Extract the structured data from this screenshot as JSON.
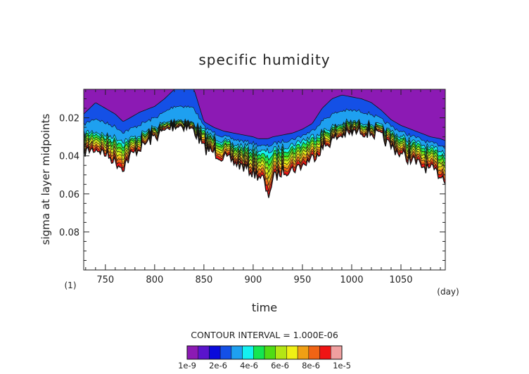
{
  "chart_data": {
    "type": "heatmap",
    "title": "specific humidity",
    "xlabel": "time",
    "ylabel": "sigma at layer midpoints",
    "x_unit": "(day)",
    "y_unit": "(1)",
    "xlim": [
      728,
      1095
    ],
    "ylim": [
      0.1,
      0.005
    ],
    "y_axis_inverted": true,
    "x_ticks": [
      750,
      800,
      850,
      900,
      950,
      1000,
      1050
    ],
    "x_tick_labels": [
      "750",
      "800",
      "850",
      "900",
      "950",
      "1000",
      "1050"
    ],
    "y_ticks": [
      0.02,
      0.04,
      0.06,
      0.08
    ],
    "y_tick_labels": [
      "0.02",
      "0.04",
      "0.06",
      "0.08"
    ],
    "contour_interval_text": "CONTOUR INTERVAL = 1.000E-06",
    "colorbar": {
      "labels": [
        "1e-9",
        "2e-6",
        "4e-6",
        "6e-6",
        "8e-6",
        "1e-5"
      ],
      "colors": [
        "#8c1ab4",
        "#5a14cc",
        "#0a0adc",
        "#1450e6",
        "#1ea0f0",
        "#14f0f0",
        "#14e650",
        "#50dc14",
        "#b4e614",
        "#f0f014",
        "#f0a014",
        "#f06414",
        "#f01414",
        "#f0a0a0"
      ]
    },
    "level_boundaries": {
      "x": [
        728,
        740,
        750,
        760,
        768,
        775,
        785,
        800,
        810,
        820,
        830,
        840,
        850,
        860,
        870,
        880,
        890,
        900,
        905,
        910,
        915,
        920,
        930,
        940,
        950,
        960,
        970,
        980,
        990,
        1000,
        1010,
        1020,
        1030,
        1040,
        1050,
        1060,
        1070,
        1080,
        1090,
        1095
      ],
      "lowest_cloud_sigma": [
        0.038,
        0.036,
        0.039,
        0.043,
        0.046,
        0.04,
        0.036,
        0.03,
        0.027,
        0.024,
        0.024,
        0.027,
        0.036,
        0.038,
        0.041,
        0.043,
        0.046,
        0.049,
        0.05,
        0.052,
        0.062,
        0.052,
        0.048,
        0.047,
        0.045,
        0.041,
        0.036,
        0.032,
        0.029,
        0.028,
        0.027,
        0.028,
        0.03,
        0.035,
        0.039,
        0.042,
        0.045,
        0.047,
        0.05,
        0.052
      ],
      "colored_top_sigma": [
        0.028,
        0.027,
        0.029,
        0.03,
        0.032,
        0.031,
        0.029,
        0.025,
        0.023,
        0.021,
        0.021,
        0.023,
        0.027,
        0.03,
        0.032,
        0.034,
        0.035,
        0.036,
        0.037,
        0.038,
        0.038,
        0.037,
        0.035,
        0.034,
        0.032,
        0.03,
        0.027,
        0.025,
        0.023,
        0.022,
        0.022,
        0.023,
        0.025,
        0.027,
        0.03,
        0.032,
        0.034,
        0.036,
        0.037,
        0.038
      ],
      "blue_top_sigma": [
        0.018,
        0.012,
        0.015,
        0.018,
        0.022,
        0.02,
        0.017,
        0.014,
        0.01,
        0.005,
        0.005,
        0.005,
        0.022,
        0.025,
        0.027,
        0.028,
        0.029,
        0.03,
        0.031,
        0.031,
        0.031,
        0.03,
        0.029,
        0.028,
        0.026,
        0.023,
        0.015,
        0.01,
        0.008,
        0.009,
        0.01,
        0.012,
        0.016,
        0.021,
        0.024,
        0.026,
        0.028,
        0.03,
        0.031,
        0.032
      ]
    }
  }
}
